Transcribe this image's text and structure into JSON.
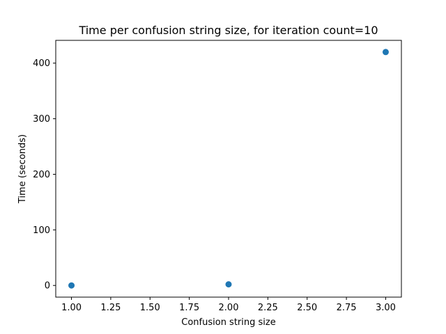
{
  "chart_data": {
    "type": "scatter",
    "title": "Time per confusion string size, for iteration count=10",
    "xlabel": "Confusion string size",
    "ylabel": "Time (seconds)",
    "x": [
      1,
      2,
      3
    ],
    "y": [
      0,
      2,
      420
    ],
    "xlim": [
      0.9,
      3.1
    ],
    "ylim": [
      -21,
      441
    ],
    "xticks": [
      1.0,
      1.25,
      1.5,
      1.75,
      2.0,
      2.25,
      2.5,
      2.75,
      3.0
    ],
    "xtick_labels": [
      "1.00",
      "1.25",
      "1.50",
      "1.75",
      "2.00",
      "2.25",
      "2.50",
      "2.75",
      "3.00"
    ],
    "yticks": [
      0,
      100,
      200,
      300,
      400
    ],
    "ytick_labels": [
      "0",
      "100",
      "200",
      "300",
      "400"
    ],
    "marker_color": "#1f77b4",
    "grid": false,
    "legend": false
  }
}
